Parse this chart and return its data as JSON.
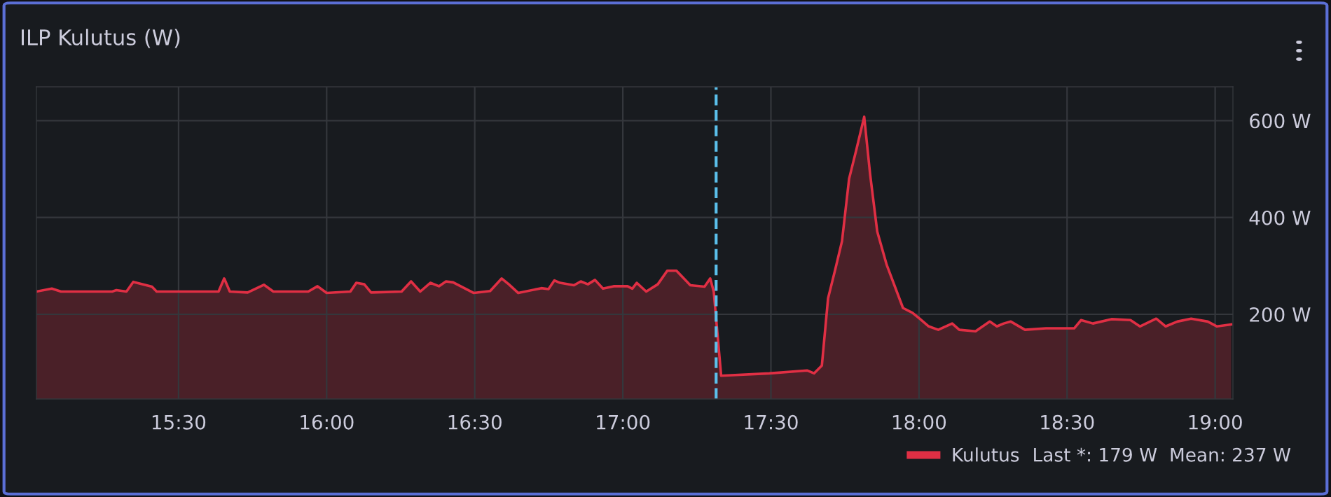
{
  "chart_data": {
    "type": "area",
    "title": "ILP Kulutus (W)",
    "x": [
      15.02,
      15.072,
      15.103,
      15.276,
      15.29,
      15.324,
      15.347,
      15.41,
      15.426,
      15.635,
      15.654,
      15.673,
      15.733,
      15.788,
      15.82,
      15.938,
      15.969,
      16.0,
      16.08,
      16.1,
      16.127,
      16.15,
      16.253,
      16.285,
      16.316,
      16.35,
      16.379,
      16.403,
      16.427,
      16.497,
      16.552,
      16.591,
      16.615,
      16.647,
      16.725,
      16.749,
      16.769,
      16.788,
      16.835,
      16.858,
      16.882,
      16.906,
      16.933,
      16.969,
      17.016,
      17.032,
      17.047,
      17.079,
      17.118,
      17.15,
      17.181,
      17.228,
      17.276,
      17.295,
      17.307,
      17.332,
      17.495,
      17.622,
      17.646,
      17.672,
      17.693,
      17.717,
      17.74,
      17.764,
      17.788,
      17.815,
      17.835,
      17.859,
      17.891,
      17.946,
      17.978,
      18.002,
      18.033,
      18.065,
      18.112,
      18.136,
      18.191,
      18.239,
      18.263,
      18.286,
      18.31,
      18.358,
      18.429,
      18.524,
      18.547,
      18.587,
      18.65,
      18.714,
      18.746,
      18.801,
      18.833,
      18.872,
      18.919,
      18.975,
      19.006,
      19.054
    ],
    "series": [
      {
        "name": "Kulutus",
        "color": "#e02f44",
        "values": [
          247,
          253,
          247,
          247,
          250,
          247,
          267,
          257,
          247,
          247,
          274,
          247,
          245,
          261,
          247,
          247,
          258,
          244,
          247,
          265,
          262,
          245,
          247,
          268,
          247,
          265,
          258,
          268,
          266,
          244,
          248,
          274,
          262,
          244,
          254,
          252,
          270,
          265,
          260,
          268,
          262,
          271,
          253,
          258,
          258,
          253,
          265,
          247,
          262,
          290,
          290,
          260,
          257,
          274,
          247,
          73,
          78,
          84,
          78,
          94,
          233,
          292,
          351,
          480,
          539,
          608,
          489,
          371,
          302,
          213,
          203,
          191,
          175,
          168,
          181,
          168,
          165,
          185,
          175,
          181,
          185,
          168,
          171,
          171,
          188,
          181,
          190,
          188,
          175,
          191,
          175,
          185,
          191,
          185,
          175,
          179
        ]
      }
    ],
    "xlim": [
      15.02,
      19.06
    ],
    "xticks": [
      {
        "value": 15.5,
        "label": "15:30"
      },
      {
        "value": 16.0,
        "label": "16:00"
      },
      {
        "value": 16.5,
        "label": "16:30"
      },
      {
        "value": 17.0,
        "label": "17:00"
      },
      {
        "value": 17.5,
        "label": "17:30"
      },
      {
        "value": 18.0,
        "label": "18:00"
      },
      {
        "value": 18.5,
        "label": "18:30"
      },
      {
        "value": 19.0,
        "label": "19:00"
      }
    ],
    "ylim": [
      25,
      670
    ],
    "yticks": [
      {
        "value": 200,
        "label": "200 W"
      },
      {
        "value": 400,
        "label": "400 W"
      },
      {
        "value": 600,
        "label": "600 W"
      }
    ],
    "ref_lines": [
      {
        "axis": "x",
        "value": 17.315,
        "label": null,
        "color": "#5bc0eb",
        "line_style": "dashed"
      }
    ],
    "annotations": [
      "Last *: 179 W",
      "Mean: 237 W"
    ],
    "grid": true,
    "legend": "bottom right",
    "marker": "none",
    "line_style": "solid"
  }
}
